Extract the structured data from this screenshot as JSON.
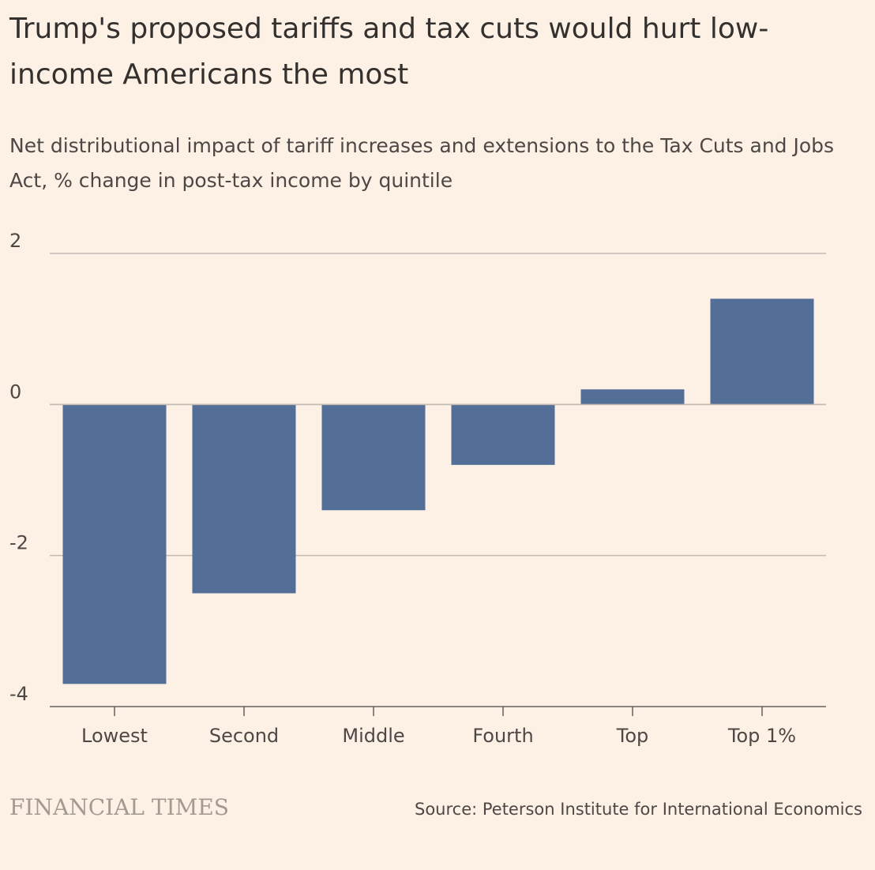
{
  "header": {
    "title": "Trump's proposed tariffs and tax cuts would hurt low-income Americans the most",
    "subtitle": "Net distributional impact of tariff increases and extensions to the Tax Cuts and Jobs Act, % change in post-tax income by quintile"
  },
  "footer": {
    "brand": "FINANCIAL TIMES",
    "source": "Source: Peterson Institute for International Economics"
  },
  "colors": {
    "background": "#fdf1e5",
    "bar": "#536f97",
    "gridline": "#c2bab3",
    "axis": "#66605c"
  },
  "chart_data": {
    "type": "bar",
    "title": "Trump's proposed tariffs and tax cuts would hurt low-income Americans the most",
    "subtitle": "Net distributional impact of tariff increases and extensions to the Tax Cuts and Jobs Act, % change in post-tax income by quintile",
    "categories": [
      "Lowest",
      "Second",
      "Middle",
      "Fourth",
      "Top",
      "Top 1%"
    ],
    "values": [
      -3.7,
      -2.5,
      -1.4,
      -0.8,
      0.2,
      1.4
    ],
    "xlabel": "",
    "ylabel": "",
    "ylim": [
      -4,
      2
    ],
    "yticks": [
      2,
      0,
      -2,
      -4
    ],
    "grid": true,
    "legend": "none"
  }
}
